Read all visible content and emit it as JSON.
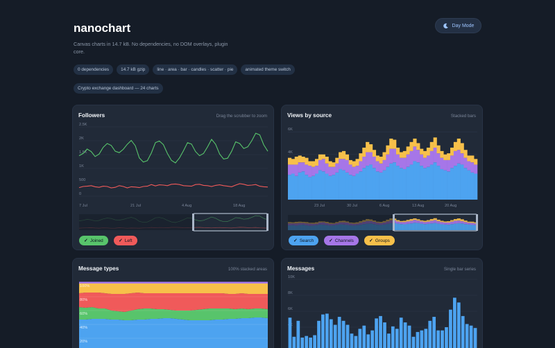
{
  "header": {
    "title": "nanochart",
    "description": "Canvas charts in 14.7 kB. No dependencies, no DOM overlays, plugin core.",
    "theme_button": "Day Mode",
    "badges": [
      "0 dependencies",
      "14.7 kB gzip",
      "line · area · bar · candles · scatter · pie",
      "animated theme switch"
    ],
    "dashboard_link": "Crypto exchange dashboard — 24 charts"
  },
  "colors": {
    "green": "#58c46b",
    "red": "#f05a5a",
    "blue": "#4da3f0",
    "purple": "#a676e8",
    "yellow": "#f7c04a",
    "accent": "#9ec5ff"
  },
  "followers": {
    "title": "Followers",
    "subtitle": "Drag the scrubber to zoom",
    "toggles": [
      {
        "label": "Joined",
        "color": "#58c46b"
      },
      {
        "label": "Left",
        "color": "#f05a5a"
      }
    ],
    "chart_data": {
      "type": "line",
      "y_ticks": [
        "2.5K",
        "2K",
        "1.5K",
        "1K",
        "500",
        "0"
      ],
      "x_ticks": [
        "7 Jul",
        "21 Jul",
        "4 Aug",
        "18 Aug"
      ],
      "series": [
        {
          "name": "Joined",
          "values": [
            1460,
            1540,
            1700,
            1610,
            1430,
            1520,
            1760,
            1900,
            1830,
            1620,
            1570,
            1690,
            1870,
            2010,
            1820,
            1380,
            1230,
            1280,
            1560,
            1930,
            1990,
            1860,
            1540,
            1290,
            1200,
            1380,
            1640,
            1930,
            1880,
            1610,
            1460,
            1540,
            1780,
            2050,
            1870,
            1520,
            1340,
            1370,
            1620,
            1960,
            1900,
            1720,
            1780,
            2000,
            2270,
            2210,
            1850,
            1620
          ]
        },
        {
          "name": "Left",
          "values": [
            310,
            350,
            360,
            380,
            340,
            320,
            360,
            350,
            300,
            320,
            380,
            350,
            300,
            340,
            330,
            310,
            350,
            360,
            420,
            370,
            410,
            400,
            380,
            430,
            440,
            420,
            380,
            370,
            360,
            420,
            430,
            390,
            380,
            350,
            390,
            410,
            380,
            360,
            340,
            400,
            450,
            430,
            390,
            400,
            420,
            360,
            340,
            330
          ]
        }
      ]
    }
  },
  "views": {
    "title": "Views by source",
    "subtitle": "Stacked bars",
    "toggles": [
      {
        "label": "Search",
        "color": "#4da3f0"
      },
      {
        "label": "Channels",
        "color": "#a676e8"
      },
      {
        "label": "Groups",
        "color": "#f7c04a"
      }
    ],
    "chart_data": {
      "type": "bar",
      "y_ticks": [
        "6K",
        "4K",
        "2K"
      ],
      "x_ticks": [
        "23 Jul",
        "30 Jul",
        "6 Aug",
        "13 Aug",
        "20 Aug"
      ],
      "series": [
        {
          "name": "Search",
          "values": [
            2200,
            2300,
            2100,
            2400,
            2500,
            2200,
            2000,
            2100,
            2300,
            2600,
            2500,
            2300,
            2100,
            2200,
            2400,
            2700,
            2600,
            2400,
            2200,
            2100,
            2300,
            2500,
            2800,
            3000,
            3100,
            2800,
            2500,
            2400,
            2600,
            2900,
            3200,
            3300,
            3000,
            2800,
            2700,
            2900,
            3100,
            3400,
            3300,
            3000,
            2800,
            2900,
            3100,
            3300,
            3000,
            2700,
            2600,
            2500,
            2800,
            3000,
            3200,
            3100,
            2800,
            2600,
            2400,
            2300
          ]
        },
        {
          "name": "Channels",
          "values": [
            900,
            800,
            1000,
            900,
            800,
            900,
            1000,
            800,
            700,
            900,
            1100,
            900,
            800,
            700,
            800,
            900,
            1000,
            1100,
            900,
            800,
            700,
            900,
            1000,
            1200,
            1100,
            1000,
            900,
            800,
            900,
            1100,
            1300,
            1200,
            1000,
            900,
            1000,
            1100,
            1200,
            1300,
            1100,
            1000,
            900,
            1000,
            1200,
            1300,
            1100,
            1000,
            900,
            1000,
            1100,
            1300,
            1200,
            1000,
            900,
            800,
            900,
            800
          ]
        },
        {
          "name": "Groups",
          "values": [
            600,
            500,
            700,
            600,
            500,
            600,
            400,
            500,
            600,
            500,
            400,
            600,
            500,
            400,
            500,
            600,
            700,
            500,
            400,
            500,
            600,
            700,
            800,
            900,
            700,
            600,
            500,
            600,
            700,
            800,
            900,
            800,
            600,
            500,
            600,
            700,
            800,
            700,
            600,
            500,
            600,
            700,
            800,
            900,
            700,
            600,
            500,
            600,
            700,
            800,
            1000,
            900,
            700,
            500,
            600,
            500
          ]
        }
      ]
    }
  },
  "messages_types": {
    "title": "Message types",
    "subtitle": "100% stacked areas",
    "chart_data": {
      "type": "area",
      "y_ticks": [
        "100%",
        "80%",
        "60%",
        "40%",
        "20%"
      ],
      "series": [
        {
          "name": "Search",
          "values": [
            47,
            47,
            48,
            48,
            48,
            47,
            47,
            46,
            46,
            47,
            47,
            48,
            48,
            49,
            49,
            48,
            47,
            46,
            46,
            46,
            46,
            47,
            47,
            48,
            48,
            49,
            49,
            50,
            50,
            49
          ]
        },
        {
          "name": "Channels",
          "values": [
            18,
            17,
            17,
            15,
            15,
            13,
            12,
            12,
            14,
            15,
            16,
            15,
            14,
            13,
            12,
            12,
            13,
            14,
            15,
            16,
            17,
            16,
            16,
            15,
            14,
            14,
            13,
            13,
            13,
            13
          ]
        },
        {
          "name": "Groups",
          "values": [
            20,
            22,
            21,
            23,
            22,
            24,
            25,
            26,
            25,
            24,
            22,
            22,
            23,
            23,
            24,
            25,
            25,
            25,
            24,
            23,
            22,
            22,
            22,
            21,
            22,
            22,
            22,
            21,
            21,
            22
          ]
        },
        {
          "name": "Other",
          "values": [
            15,
            14,
            14,
            14,
            15,
            16,
            16,
            16,
            15,
            14,
            15,
            15,
            15,
            15,
            15,
            15,
            15,
            15,
            15,
            15,
            15,
            15,
            15,
            16,
            16,
            15,
            16,
            16,
            16,
            16
          ]
        }
      ]
    }
  },
  "messages": {
    "title": "Messages",
    "subtitle": "Single bar series",
    "chart_data": {
      "type": "bar",
      "y_ticks": [
        "10K",
        "8K",
        "6K",
        "4K"
      ],
      "values": [
        5200,
        2800,
        4800,
        2700,
        2900,
        2700,
        3000,
        4800,
        5600,
        5700,
        5000,
        4300,
        5300,
        4800,
        4300,
        3200,
        2900,
        3800,
        4200,
        3100,
        3600,
        5100,
        5400,
        4600,
        3200,
        4100,
        3800,
        5200,
        4600,
        4200,
        2800,
        3400,
        3600,
        3800,
        4800,
        5300,
        3600,
        3600,
        4000,
        6200,
        7700,
        7100,
        5400,
        4400,
        4200,
        3900
      ]
    }
  }
}
